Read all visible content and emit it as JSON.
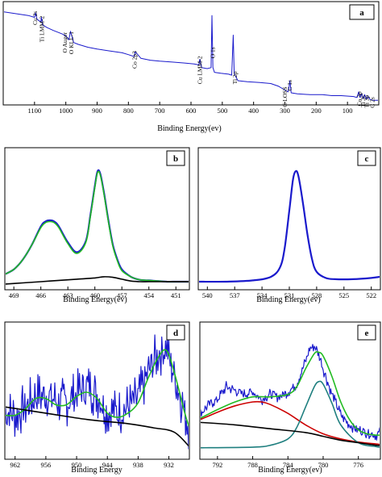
{
  "chart_data": [
    {
      "id": "a",
      "panel_label": "a",
      "type": "line",
      "xlabel": "Binding Energy(ev)",
      "xlim": [
        1200,
        0
      ],
      "xticks": [
        1100,
        1000,
        900,
        800,
        700,
        600,
        500,
        400,
        300,
        200,
        100
      ],
      "series": [
        {
          "color": "#1a1acc",
          "x": [
            1200,
            1120,
            1100,
            1097,
            1092,
            1080,
            1078,
            1074,
            1060,
            1040,
            1010,
            1000,
            990,
            985,
            980,
            975,
            960,
            930,
            900,
            860,
            820,
            800,
            782,
            778,
            760,
            730,
            700,
            660,
            620,
            590,
            575,
            572,
            566,
            548,
            536,
            533,
            530,
            525,
            505,
            480,
            470,
            465,
            462,
            458,
            450,
            420,
            380,
            345,
            320,
            300,
            290,
            287,
            284,
            280,
            260,
            220,
            180,
            150,
            120,
            80,
            70,
            64,
            60,
            55,
            50,
            45,
            40,
            35,
            28,
            20,
            10,
            0
          ],
          "y": [
            100,
            96,
            94,
            99,
            92,
            89,
            94,
            86,
            83,
            80,
            76,
            74,
            70,
            79,
            73,
            67,
            65,
            62,
            60,
            58,
            56,
            54,
            52,
            57,
            50,
            48,
            47,
            46,
            45,
            44,
            43,
            49,
            40,
            39,
            40,
            96,
            40,
            35,
            34,
            33,
            32,
            75,
            34,
            31,
            26,
            25,
            24,
            23,
            20,
            16,
            14,
            18,
            26,
            13,
            12,
            11,
            11,
            10,
            10,
            9,
            8,
            14,
            8,
            12,
            7,
            11,
            6,
            9,
            6,
            5,
            5,
            5
          ]
        }
      ],
      "annotations": [
        {
          "text": "Cu 2s",
          "x": 1098
        },
        {
          "text": "Ti LMM-2",
          "x": 1077
        },
        {
          "text": "O Auger",
          "x": 1003
        },
        {
          "text": "O KLL-1",
          "x": 982
        },
        {
          "text": "Co 2p3",
          "x": 780
        },
        {
          "text": "Cu LMM-2",
          "x": 572
        },
        {
          "text": "O 1s",
          "x": 531
        },
        {
          "text": "Ti 2p",
          "x": 460
        },
        {
          "text": "C LOSS",
          "x": 300
        },
        {
          "text": "C 1s",
          "x": 285
        },
        {
          "text": "Co 3p",
          "x": 62
        },
        {
          "text": "Ti 3s",
          "x": 50
        },
        {
          "text": "Ti 3p",
          "x": 38
        },
        {
          "text": "C 2s",
          "x": 20
        }
      ]
    },
    {
      "id": "b",
      "panel_label": "b",
      "type": "line",
      "xlabel": "Binding Energy(ev)",
      "xlim": [
        470,
        449.5
      ],
      "xticks": [
        469,
        466,
        463,
        460,
        457,
        454,
        451
      ],
      "series": [
        {
          "color": "#1a1acc",
          "x": [
            470,
            469,
            468,
            467,
            466,
            465.5,
            465,
            464.5,
            464,
            463,
            462,
            461,
            460.5,
            460,
            459.7,
            459.4,
            459,
            458.5,
            458,
            457.5,
            457,
            456,
            455,
            454,
            453,
            452,
            451,
            450,
            449.5
          ],
          "y": [
            8,
            12,
            20,
            32,
            47,
            51,
            52,
            51,
            47,
            34,
            26,
            35,
            56,
            80,
            92,
            90,
            75,
            52,
            32,
            20,
            12,
            6,
            3.5,
            3,
            2.5,
            2,
            2,
            2,
            2
          ]
        },
        {
          "color": "#22bb22",
          "x": [
            470,
            469,
            468,
            467,
            466,
            465.5,
            465,
            464.5,
            464,
            463,
            462,
            461,
            460.5,
            460,
            459.7,
            459.4,
            459,
            458.5,
            458,
            457.5,
            457,
            456,
            455,
            454,
            453,
            452,
            451,
            450,
            449.5
          ],
          "y": [
            8,
            12,
            20,
            32,
            46,
            50,
            51,
            50,
            46,
            33,
            25,
            34,
            55,
            79,
            91,
            89,
            74,
            51,
            31,
            19,
            11,
            6,
            3.5,
            3,
            2.5,
            2,
            2,
            2,
            2
          ]
        },
        {
          "color": "#000000",
          "x": [
            470,
            468,
            466,
            464,
            462,
            460,
            459,
            458,
            457,
            456,
            455,
            454,
            452,
            449.5
          ],
          "y": [
            0,
            1,
            2,
            3,
            4,
            5,
            6,
            5.5,
            4,
            2.5,
            2,
            2,
            2,
            2
          ]
        }
      ]
    },
    {
      "id": "c",
      "panel_label": "c",
      "type": "line",
      "xlabel": "Binding Energy(ev)",
      "xlim": [
        541,
        521
      ],
      "xticks": [
        540,
        537,
        534,
        531,
        528,
        525,
        522
      ],
      "series": [
        {
          "color": "#1a1acc",
          "x": [
            541,
            538,
            535,
            533,
            532,
            531.5,
            531,
            530.6,
            530.3,
            530,
            529.5,
            529,
            528.5,
            528,
            527,
            526,
            524,
            522,
            521
          ],
          "y": [
            2,
            2,
            3,
            6,
            14,
            30,
            60,
            85,
            92,
            88,
            66,
            40,
            20,
            10,
            5,
            4,
            4,
            5,
            6
          ]
        }
      ]
    },
    {
      "id": "d",
      "panel_label": "d",
      "type": "line",
      "xlabel": "Binding Energy",
      "xlim": [
        964,
        928
      ],
      "xticks": [
        962,
        956,
        950,
        944,
        938,
        932
      ],
      "series": [
        {
          "color": "#1a1acc",
          "noisy": true,
          "x": [
            964,
            962,
            960,
            958,
            956,
            954,
            952,
            950,
            948,
            946,
            944,
            942,
            940,
            938,
            936,
            934,
            932.5,
            931,
            929,
            928
          ],
          "y": [
            28,
            26,
            30,
            35,
            36,
            33,
            32,
            36,
            40,
            36,
            28,
            27,
            30,
            34,
            47,
            56,
            58,
            46,
            28,
            20
          ]
        },
        {
          "color": "#22bb22",
          "x": [
            964,
            962,
            960,
            958,
            956,
            954,
            952,
            950,
            948,
            946,
            944,
            942,
            940,
            938,
            936,
            934,
            932.5,
            931,
            929,
            928
          ],
          "y": [
            26,
            26,
            29,
            34,
            34,
            31,
            31,
            35,
            37,
            34,
            27,
            25,
            27,
            32,
            44,
            54,
            57,
            47,
            28,
            20
          ]
        },
        {
          "color": "#000000",
          "x": [
            964,
            956,
            948,
            940,
            935,
            931,
            928
          ],
          "y": [
            30,
            27,
            24,
            22,
            20,
            18,
            11
          ]
        }
      ]
    },
    {
      "id": "e",
      "panel_label": "e",
      "type": "line",
      "xlabel": "Binding Energy(ev)",
      "xlim": [
        794,
        773.5
      ],
      "xticks": [
        792,
        788,
        784,
        780,
        776
      ],
      "series": [
        {
          "color": "#1a1acc",
          "noisy": true,
          "x": [
            794,
            793,
            792,
            791,
            790,
            789,
            788,
            787,
            786,
            785,
            784,
            783,
            782,
            781.5,
            781,
            780.5,
            780,
            779,
            778,
            777,
            776,
            775,
            774,
            773.5
          ],
          "y": [
            36,
            44,
            48,
            58,
            55,
            52,
            54,
            48,
            52,
            50,
            54,
            60,
            78,
            88,
            90,
            84,
            72,
            52,
            36,
            28,
            24,
            22,
            20,
            22
          ]
        },
        {
          "color": "#22bb22",
          "x": [
            794,
            792,
            790,
            788,
            786,
            784,
            783,
            782,
            781,
            780.5,
            780,
            779,
            778,
            777,
            776,
            775,
            774,
            773.5
          ],
          "y": [
            33,
            40,
            46,
            50,
            50,
            52,
            58,
            72,
            84,
            85,
            82,
            66,
            46,
            32,
            24,
            21,
            20,
            20
          ]
        },
        {
          "color": "#cc0000",
          "x": [
            794,
            792,
            790,
            788,
            787,
            786,
            784,
            782,
            780,
            778,
            776,
            774,
            773.5
          ],
          "y": [
            32,
            38,
            43,
            46,
            46,
            44,
            37,
            28,
            21,
            17,
            14.5,
            13,
            12.5
          ]
        },
        {
          "color": "#1f7f7f",
          "x": [
            794,
            788,
            786,
            784,
            783,
            782,
            781,
            780.5,
            780,
            779,
            778,
            776,
            774,
            773.5
          ],
          "y": [
            10,
            10.5,
            12,
            17,
            26,
            42,
            58,
            62,
            60,
            45,
            28,
            14,
            11,
            10.5
          ]
        },
        {
          "color": "#000000",
          "x": [
            794,
            790,
            786,
            782,
            780,
            778,
            776,
            774,
            773.5
          ],
          "y": [
            30,
            28,
            25,
            22,
            19,
            16,
            14,
            12,
            12
          ]
        }
      ]
    }
  ]
}
